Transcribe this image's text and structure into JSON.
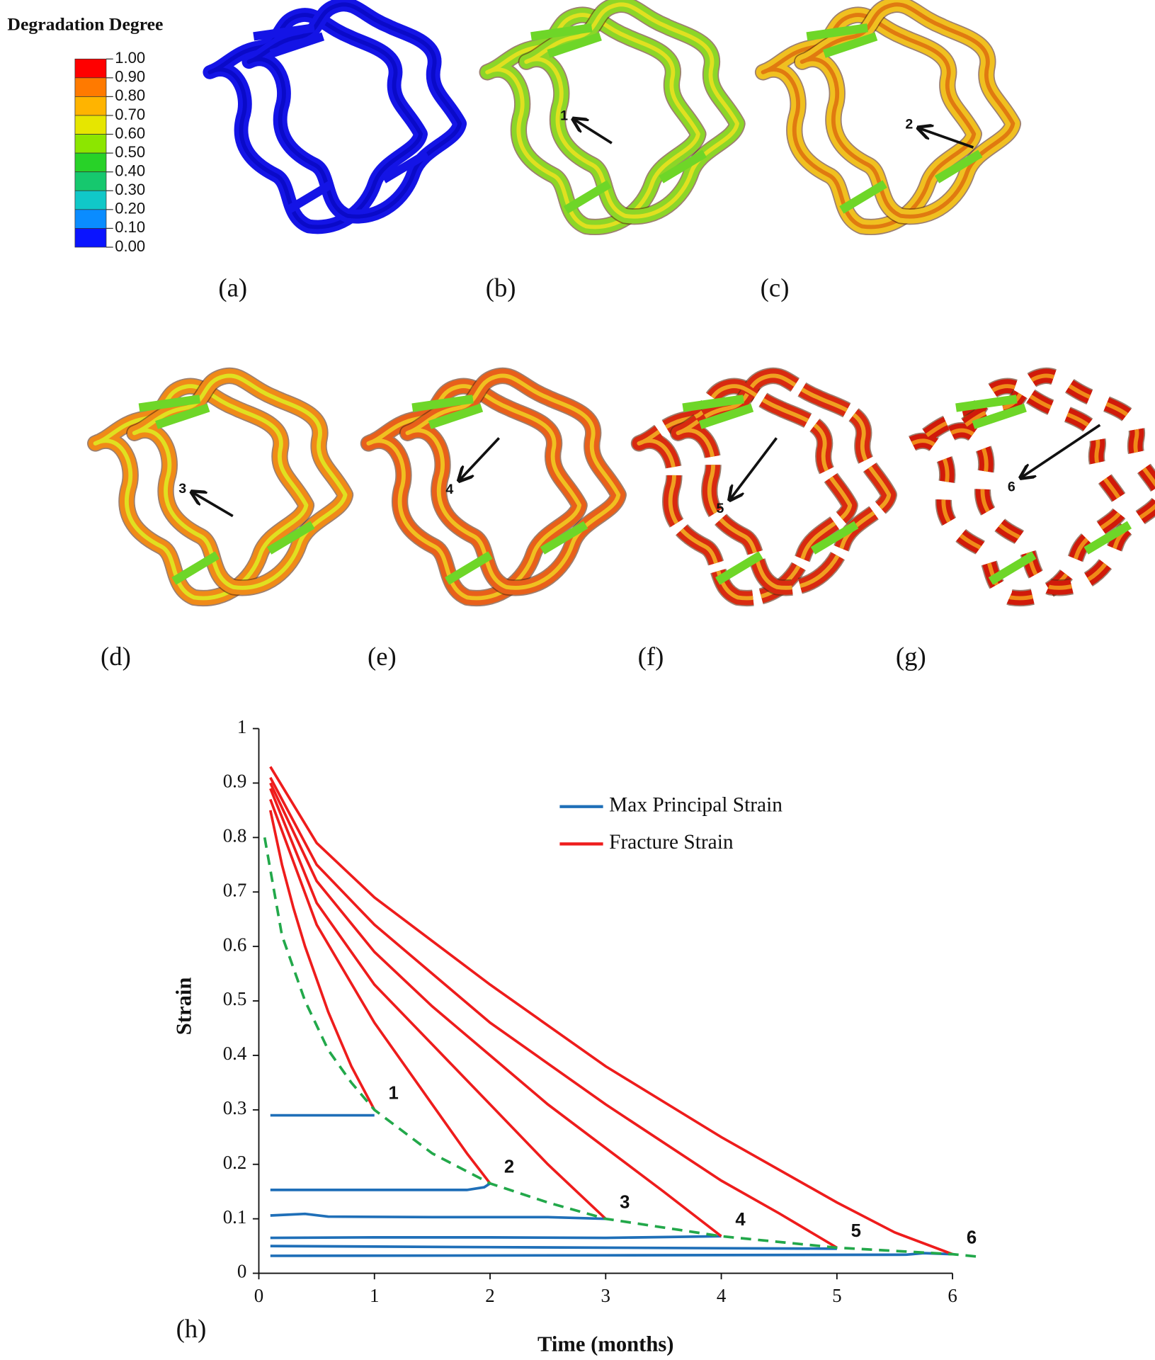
{
  "colorbar": {
    "title": "Degradation Degree",
    "labels": [
      "1.00",
      "0.90",
      "0.80",
      "0.70",
      "0.60",
      "0.50",
      "0.40",
      "0.30",
      "0.20",
      "0.10",
      "0.00"
    ],
    "colors": [
      "#ff0000",
      "#ff7a00",
      "#ffb400",
      "#e6e600",
      "#8ce600",
      "#28d228",
      "#16c86e",
      "#10c8c8",
      "#0a8cff",
      "#0a14ff"
    ]
  },
  "panels": [
    {
      "label": "(a)",
      "colors": [
        "#1414e6",
        "#0a0ac8"
      ]
    },
    {
      "label": "(b)",
      "colors": [
        "#8cd628",
        "#e0e020"
      ],
      "arrow_label": "1"
    },
    {
      "label": "(c)",
      "colors": [
        "#f0c020",
        "#e07a10"
      ],
      "arrow_label": "2"
    },
    {
      "label": "(d)",
      "colors": [
        "#f08a18",
        "#e0e020"
      ],
      "arrow_label": "3"
    },
    {
      "label": "(e)",
      "colors": [
        "#e8601a",
        "#f0c020"
      ],
      "arrow_label": "4"
    },
    {
      "label": "(f)",
      "colors": [
        "#d82a10",
        "#f0a020"
      ],
      "arrow_label": "5"
    },
    {
      "label": "(g)",
      "colors": [
        "#d01a0a",
        "#f08a18"
      ],
      "arrow_label": "6"
    }
  ],
  "chart_data": {
    "type": "line",
    "panel_label": "(h)",
    "x_label": "Time (months)",
    "y_label": "Strain",
    "xlim": [
      0,
      6.25
    ],
    "ylim": [
      0,
      1
    ],
    "xticks": [
      0,
      1,
      2,
      3,
      4,
      5,
      6
    ],
    "yticks": [
      0,
      0.1,
      0.2,
      0.3,
      0.4,
      0.5,
      0.6,
      0.7,
      0.8,
      0.9,
      1
    ],
    "legend": "upper right",
    "series": [
      {
        "name": "Max Principal Strain",
        "color": "#1f6fb8",
        "lines": [
          {
            "x": [
              0.1,
              0.5,
              1.0
            ],
            "values": [
              0.29,
              0.29,
              0.29
            ]
          },
          {
            "x": [
              0.1,
              1.0,
              1.8,
              1.95,
              2.0
            ],
            "values": [
              0.153,
              0.153,
              0.153,
              0.158,
              0.165
            ]
          },
          {
            "x": [
              0.1,
              0.4,
              0.6,
              1.5,
              2.5,
              3.0
            ],
            "values": [
              0.106,
              0.109,
              0.104,
              0.103,
              0.103,
              0.1
            ]
          },
          {
            "x": [
              0.1,
              1.0,
              2.0,
              3.0,
              4.0
            ],
            "values": [
              0.065,
              0.066,
              0.066,
              0.065,
              0.068
            ]
          },
          {
            "x": [
              0.1,
              2.0,
              4.0,
              5.0
            ],
            "values": [
              0.05,
              0.048,
              0.046,
              0.045
            ]
          },
          {
            "x": [
              0.1,
              3.0,
              5.6,
              5.75,
              6.0
            ],
            "values": [
              0.032,
              0.033,
              0.034,
              0.037,
              0.035
            ]
          }
        ]
      },
      {
        "name": "Fracture Strain",
        "color": "#ee1c1c",
        "lines": [
          {
            "label": "1",
            "x": [
              0.1,
              0.2,
              0.3,
              0.4,
              0.5,
              0.6,
              0.7,
              0.8,
              0.9,
              1.0
            ],
            "values": [
              0.85,
              0.75,
              0.67,
              0.6,
              0.54,
              0.48,
              0.43,
              0.38,
              0.34,
              0.3
            ]
          },
          {
            "label": "2",
            "x": [
              0.1,
              0.5,
              1.0,
              1.5,
              1.8,
              2.0
            ],
            "values": [
              0.87,
              0.64,
              0.46,
              0.31,
              0.22,
              0.165
            ]
          },
          {
            "label": "3",
            "x": [
              0.1,
              0.5,
              1.0,
              1.5,
              2.0,
              2.5,
              3.0
            ],
            "values": [
              0.89,
              0.68,
              0.53,
              0.42,
              0.31,
              0.2,
              0.1
            ]
          },
          {
            "label": "4",
            "x": [
              0.1,
              0.5,
              1.0,
              1.5,
              2.0,
              2.5,
              3.0,
              3.5,
              4.0
            ],
            "values": [
              0.9,
              0.72,
              0.59,
              0.49,
              0.4,
              0.31,
              0.23,
              0.15,
              0.068
            ]
          },
          {
            "label": "5",
            "x": [
              0.1,
              0.5,
              1.0,
              2.0,
              3.0,
              4.0,
              4.5,
              5.0
            ],
            "values": [
              0.91,
              0.75,
              0.64,
              0.46,
              0.31,
              0.17,
              0.11,
              0.047
            ]
          },
          {
            "label": "6",
            "x": [
              0.1,
              0.5,
              1.0,
              2.0,
              3.0,
              4.0,
              5.0,
              5.5,
              6.0
            ],
            "values": [
              0.93,
              0.79,
              0.69,
              0.53,
              0.38,
              0.25,
              0.13,
              0.075,
              0.035
            ]
          }
        ]
      },
      {
        "color": "#22a84a",
        "dashed": true,
        "lines": [
          {
            "x": [
              0.05,
              0.2,
              0.4,
              0.6,
              0.8,
              1.0,
              1.5,
              2.0,
              2.5,
              3.0,
              4.0,
              5.0,
              6.0,
              6.25
            ],
            "values": [
              0.8,
              0.62,
              0.5,
              0.41,
              0.35,
              0.3,
              0.22,
              0.165,
              0.13,
              0.1,
              0.068,
              0.047,
              0.035,
              0.03
            ]
          }
        ]
      }
    ]
  }
}
